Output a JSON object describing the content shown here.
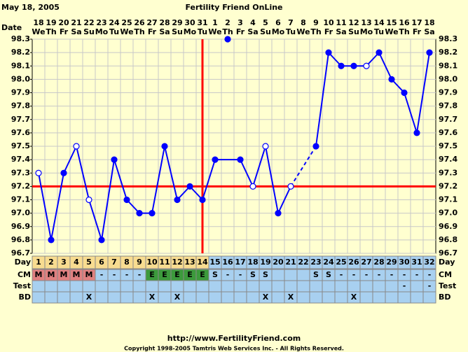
{
  "chart_data": {
    "type": "line",
    "title": "Fertility Friend OnLine",
    "date": "May 18, 2005",
    "row_labels": {
      "date": "Date",
      "day": "Day",
      "cm": "CM",
      "test": "Test",
      "bd": "BD"
    },
    "categories": [
      "18",
      "19",
      "20",
      "21",
      "22",
      "23",
      "24",
      "25",
      "26",
      "27",
      "28",
      "29",
      "30",
      "31",
      "1",
      "2",
      "3",
      "4",
      "5",
      "6",
      "7",
      "8",
      "9",
      "10",
      "11",
      "12",
      "13",
      "14",
      "15",
      "16",
      "17",
      "18"
    ],
    "weekdays": [
      "We",
      "Th",
      "Fr",
      "Sa",
      "Su",
      "Mo",
      "Tu",
      "We",
      "Th",
      "Fr",
      "Sa",
      "Su",
      "Mo",
      "Tu",
      "We",
      "Th",
      "Fr",
      "Sa",
      "Su",
      "Mo",
      "Tu",
      "We",
      "Th",
      "Fr",
      "Sa",
      "Su",
      "Mo",
      "Tu",
      "We",
      "Th",
      "Fr",
      "Sa"
    ],
    "days": [
      1,
      2,
      3,
      4,
      5,
      6,
      7,
      8,
      9,
      10,
      11,
      12,
      13,
      14,
      15,
      16,
      17,
      18,
      19,
      20,
      21,
      22,
      23,
      24,
      25,
      26,
      27,
      28,
      29,
      30,
      31,
      32
    ],
    "series": [
      {
        "color": "#0000ff",
        "values": [
          97.3,
          96.8,
          97.3,
          97.5,
          97.1,
          96.8,
          97.4,
          97.1,
          97.0,
          97.0,
          97.5,
          97.1,
          97.2,
          97.1,
          97.4,
          98.3,
          97.4,
          97.2,
          97.5,
          97.0,
          97.2,
          null,
          97.5,
          98.2,
          98.1,
          98.1,
          98.1,
          98.2,
          98.0,
          97.9,
          97.6,
          98.2
        ],
        "point_style": [
          "open",
          "filled",
          "filled",
          "open",
          "open",
          "filled",
          "filled",
          "filled",
          "filled",
          "filled",
          "filled",
          "filled",
          "filled",
          "filled",
          "filled",
          "isolated",
          "filled",
          "open",
          "open",
          "filled",
          "open",
          null,
          "filled",
          "filled",
          "filled",
          "filled",
          "open",
          "filled",
          "filled",
          "filled",
          "filled",
          "filled"
        ]
      }
    ],
    "ylim": [
      96.7,
      98.3
    ],
    "yticks": [
      96.7,
      96.8,
      96.9,
      {
        "value": 97.0,
        "label": "97.0"
      },
      97.1,
      97.2,
      97.3,
      97.4,
      97.5,
      97.6,
      97.7,
      97.8,
      97.9,
      {
        "value": 98.0,
        "label": "98.0"
      },
      98.1,
      98.2,
      98.3
    ],
    "grid": true,
    "coverline": 97.2,
    "coverline_color": "#ff0000",
    "ovulation_day": 14,
    "cm": [
      "M",
      "M",
      "M",
      "M",
      "M",
      "-",
      "-",
      "-",
      "-",
      "E",
      "E",
      "E",
      "E",
      "E",
      "S",
      "-",
      "-",
      "S",
      "S",
      null,
      null,
      null,
      "S",
      "S",
      "-",
      "-",
      "-",
      "-",
      "-",
      "-",
      "-",
      "-"
    ],
    "cm_colors": {
      "M": "#e08080",
      "E": "#3c9a3c"
    },
    "test": [
      null,
      null,
      null,
      null,
      null,
      null,
      null,
      null,
      null,
      null,
      null,
      null,
      null,
      null,
      null,
      null,
      null,
      null,
      null,
      null,
      null,
      null,
      null,
      null,
      null,
      null,
      null,
      null,
      null,
      "-",
      null,
      "-"
    ],
    "bd": [
      null,
      null,
      null,
      null,
      "X",
      null,
      null,
      null,
      null,
      "X",
      null,
      "X",
      null,
      null,
      null,
      null,
      null,
      null,
      "X",
      null,
      "X",
      null,
      null,
      null,
      null,
      "X",
      null,
      null,
      null,
      null,
      null,
      null
    ],
    "url": "http://www.FertilityFriend.com",
    "copyright": "Copyright 1998-2005 Tamtris Web Services Inc. - All Rights Reserved."
  }
}
